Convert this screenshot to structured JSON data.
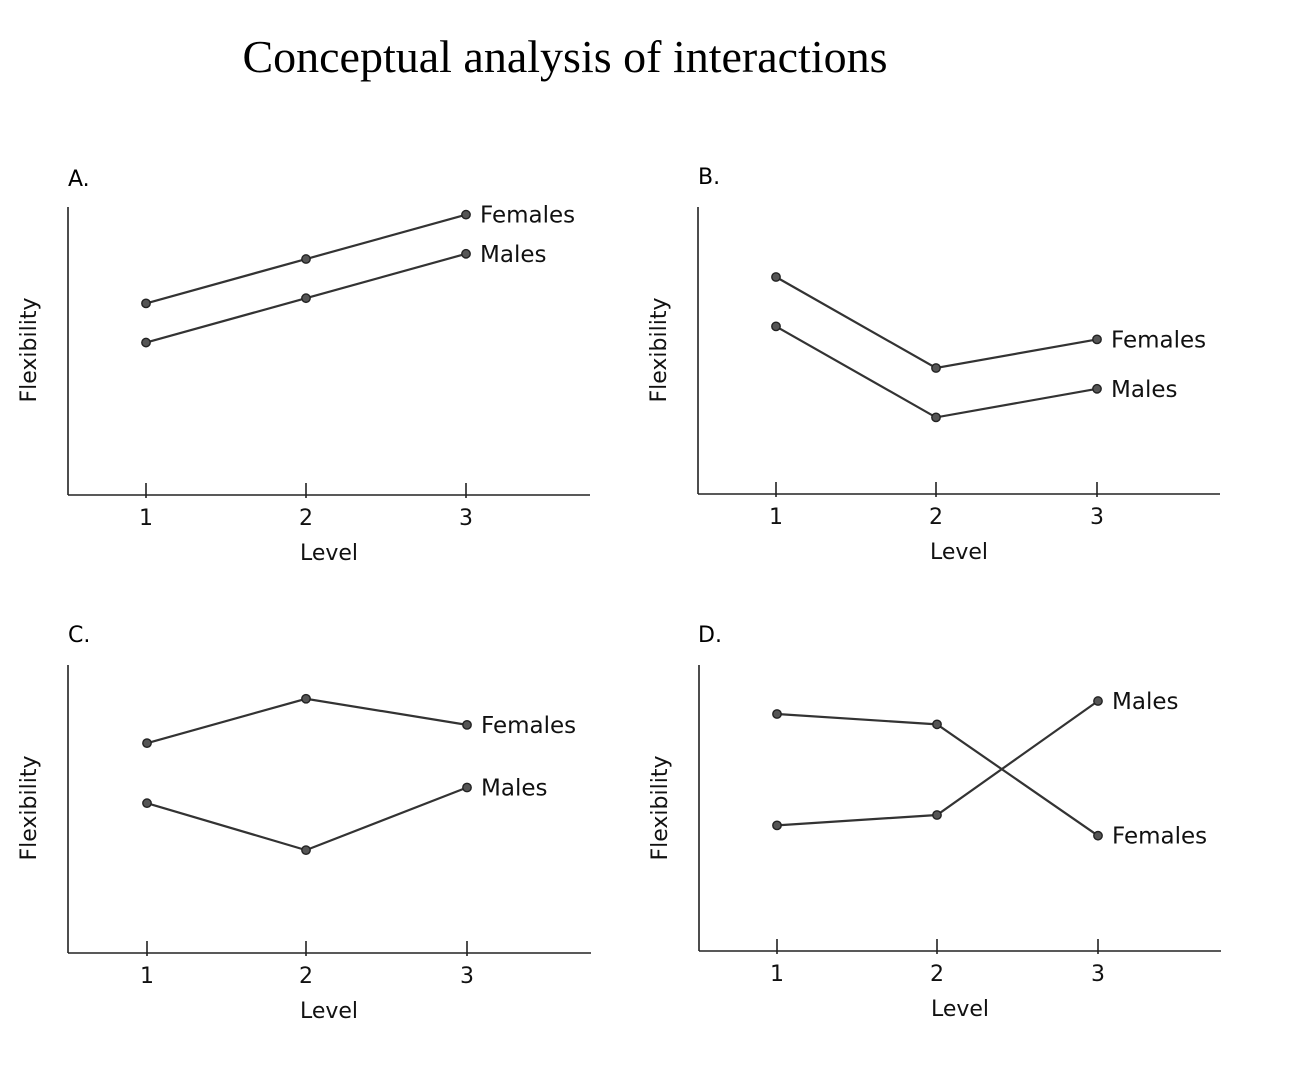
{
  "title": "Conceptual analysis of interactions",
  "chart_data": [
    {
      "type": "line",
      "panel": "A.",
      "xlabel": "Level",
      "ylabel": "Flexibility",
      "categories": [
        "1",
        "2",
        "3"
      ],
      "ylim": [
        0,
        10
      ],
      "series": [
        {
          "name": "Females",
          "values": [
            6.0,
            7.7,
            9.4
          ]
        },
        {
          "name": "Males",
          "values": [
            4.5,
            6.2,
            7.9
          ]
        }
      ]
    },
    {
      "type": "line",
      "panel": "B.",
      "xlabel": "Level",
      "ylabel": "Flexibility",
      "categories": [
        "1",
        "2",
        "3"
      ],
      "ylim": [
        0,
        10
      ],
      "series": [
        {
          "name": "Females",
          "values": [
            7.0,
            3.5,
            4.6
          ]
        },
        {
          "name": "Males",
          "values": [
            5.1,
            1.6,
            2.7
          ]
        }
      ]
    },
    {
      "type": "line",
      "panel": "C.",
      "xlabel": "Level",
      "ylabel": "Flexibility",
      "categories": [
        "1",
        "2",
        "3"
      ],
      "ylim": [
        0,
        10
      ],
      "series": [
        {
          "name": "Females",
          "values": [
            6.7,
            8.4,
            7.4
          ]
        },
        {
          "name": "Males",
          "values": [
            4.4,
            2.6,
            5.0
          ]
        }
      ]
    },
    {
      "type": "line",
      "panel": "D.",
      "xlabel": "Level",
      "ylabel": "Flexibility",
      "categories": [
        "1",
        "2",
        "3"
      ],
      "ylim": [
        0,
        10
      ],
      "series": [
        {
          "name": "Females",
          "values": [
            7.8,
            7.4,
            3.1
          ]
        },
        {
          "name": "Males",
          "values": [
            3.5,
            3.9,
            8.3
          ]
        }
      ]
    }
  ]
}
